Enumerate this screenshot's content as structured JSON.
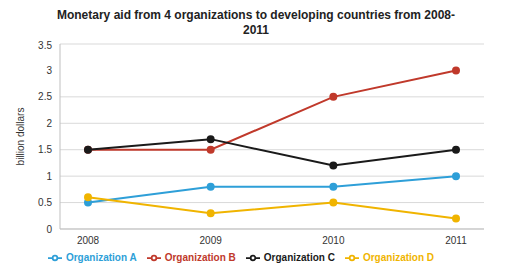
{
  "chart_data": {
    "type": "line",
    "title": "Monetary aid from 4 organizations to developing countries from 2008-2011",
    "y_label": "billion dollars",
    "categories": [
      "2008",
      "2009",
      "2010",
      "2011"
    ],
    "series": [
      {
        "name": "Organization A",
        "color": "#2e9fd8",
        "values": [
          0.5,
          0.8,
          0.8,
          1.0
        ],
        "marker": "circle"
      },
      {
        "name": "Organization B",
        "color": "#c0392b",
        "values": [
          1.5,
          1.5,
          2.5,
          3.0
        ],
        "marker": "circle"
      },
      {
        "name": "Organization C",
        "color": "#1a1a1a",
        "values": [
          1.5,
          1.7,
          1.2,
          1.5
        ],
        "marker": "circle"
      },
      {
        "name": "Organization D",
        "color": "#f0b400",
        "values": [
          0.6,
          0.3,
          0.5,
          0.2
        ],
        "marker": "circle"
      }
    ],
    "ylim": [
      0,
      3.5
    ],
    "yticks": [
      0,
      0.5,
      1,
      1.5,
      2,
      2.5,
      3,
      3.5
    ],
    "grid": true,
    "legend": "bottom"
  }
}
